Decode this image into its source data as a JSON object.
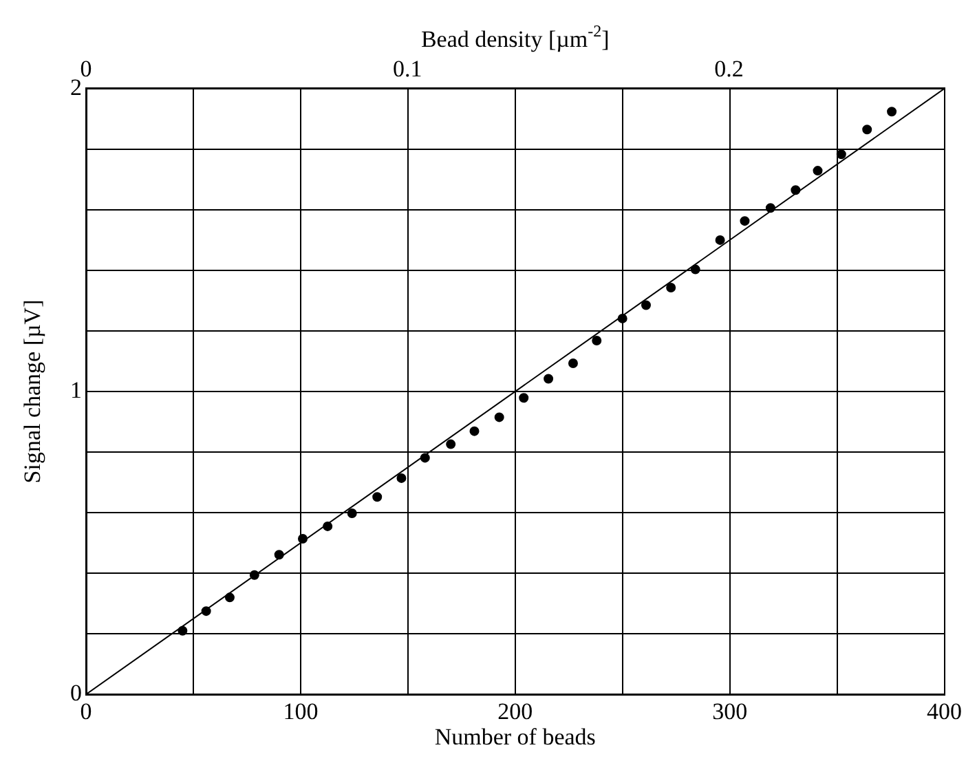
{
  "chart_data": {
    "type": "scatter",
    "xlabel": "Number of beads",
    "ylabel": "Signal change [µV]",
    "x2label": "Bead density [µm$^{-2}$]",
    "xlim": [
      0,
      400
    ],
    "xticks": [
      0,
      {
        "value": 50,
        "label": null
      },
      100,
      {
        "value": 150,
        "label": null
      },
      200,
      {
        "value": 250,
        "label": null
      },
      300,
      {
        "value": 350,
        "label": null
      },
      400
    ],
    "ylim": [
      0,
      2
    ],
    "yticks": [
      0,
      {
        "value": 0.2,
        "label": null
      },
      {
        "value": 0.4,
        "label": null
      },
      {
        "value": 0.6,
        "label": null
      },
      {
        "value": 0.8,
        "label": null
      },
      1,
      {
        "value": 1.2,
        "label": null
      },
      {
        "value": 1.4,
        "label": null
      },
      {
        "value": 1.6,
        "label": null
      },
      {
        "value": 1.8,
        "label": null
      },
      2
    ],
    "x2lim": [
      0,
      0.267
    ],
    "x2ticks": [
      0,
      0.1,
      0.2
    ],
    "grid": true,
    "legend": false,
    "series": [
      {
        "type": "scatter",
        "color": "#000000",
        "marker": "circle",
        "x": [
          45,
          56,
          67,
          78.5,
          90,
          101,
          112.6,
          124,
          135.7,
          147,
          158,
          170,
          181,
          192.6,
          204,
          215.5,
          227,
          238,
          250,
          261,
          272.6,
          284,
          295.5,
          307,
          319,
          330.7,
          341,
          352,
          364,
          375.5
        ],
        "values": [
          0.21,
          0.275,
          0.32,
          0.394,
          0.461,
          0.514,
          0.555,
          0.598,
          0.652,
          0.714,
          0.781,
          0.826,
          0.869,
          0.915,
          0.979,
          1.042,
          1.093,
          1.168,
          1.241,
          1.285,
          1.343,
          1.403,
          1.5,
          1.563,
          1.606,
          1.665,
          1.729,
          1.783,
          1.865,
          1.924
        ]
      },
      {
        "type": "line",
        "color": "#000000",
        "marker": "none",
        "x": [
          0,
          400
        ],
        "values": [
          0,
          2
        ]
      }
    ]
  }
}
